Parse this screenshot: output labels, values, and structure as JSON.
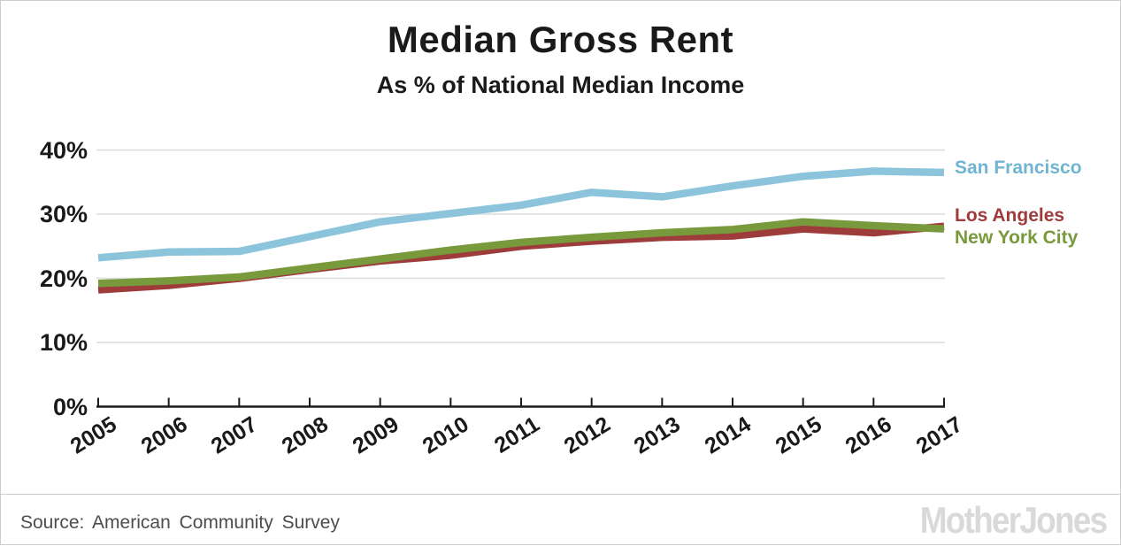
{
  "header": {
    "title": "Median Gross Rent",
    "subtitle": "As % of National Median Income"
  },
  "footer": {
    "source": "Source: American Community Survey",
    "brand": "MotherJones"
  },
  "colors": {
    "san_francisco": "#8cc5db",
    "los_angeles": "#9e3b3b",
    "new_york_city": "#78993c",
    "gridline": "#dcdcdc",
    "axis": "#1a1a1a",
    "source_text": "#4d4d4d",
    "brand_gray": "#d9d9d9"
  },
  "legend": {
    "items": [
      {
        "label": "San Francisco",
        "color": "#6fb5d3"
      },
      {
        "label": "Los Angeles",
        "color": "#9e3b3b"
      },
      {
        "label": "New York City",
        "color": "#78993c"
      }
    ]
  },
  "chart_data": {
    "type": "line",
    "title": "Median Gross Rent",
    "subtitle": "As % of National Median Income",
    "xlabel": "",
    "ylabel": "",
    "x": [
      2005,
      2006,
      2007,
      2008,
      2009,
      2010,
      2011,
      2012,
      2013,
      2014,
      2015,
      2016,
      2017
    ],
    "series": [
      {
        "name": "San Francisco",
        "color": "#8cc5db",
        "values": [
          23.2,
          24.1,
          24.2,
          26.5,
          28.8,
          30.1,
          31.4,
          33.4,
          32.7,
          34.4,
          35.9,
          36.7,
          36.5
        ]
      },
      {
        "name": "Los Angeles",
        "color": "#9e3b3b",
        "values": [
          18.2,
          18.9,
          20.0,
          21.4,
          22.7,
          23.6,
          25.0,
          25.8,
          26.4,
          26.6,
          27.7,
          27.1,
          28.1
        ]
      },
      {
        "name": "New York City",
        "color": "#78993c",
        "values": [
          19.2,
          19.6,
          20.2,
          21.6,
          23.0,
          24.4,
          25.6,
          26.4,
          27.1,
          27.6,
          28.8,
          28.2,
          27.7
        ]
      }
    ],
    "ylim": [
      0,
      40
    ],
    "yticks": [
      0,
      10,
      20,
      30,
      40
    ],
    "ytick_labels": [
      "0%",
      "10%",
      "20%",
      "30%",
      "40%"
    ],
    "grid": "horizontal",
    "legend_position": "right-of-line-ends",
    "draw_order": [
      "Los Angeles",
      "New York City",
      "San Francisco"
    ]
  }
}
